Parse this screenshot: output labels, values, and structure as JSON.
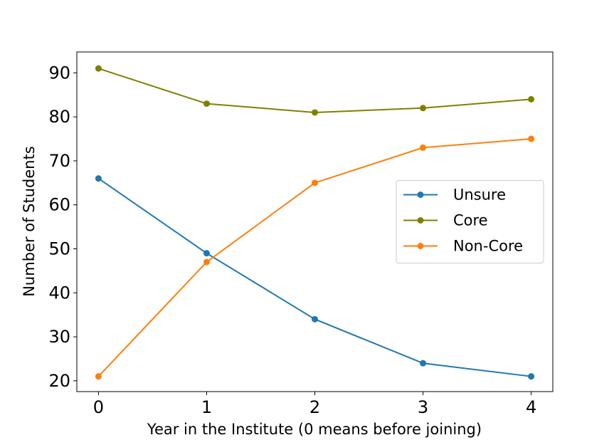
{
  "chart_data": {
    "type": "line",
    "x_label": "Year in the Institute (0 means before joining)",
    "y_label": "Number of Students",
    "x": [
      0,
      1,
      2,
      3,
      4
    ],
    "series": [
      {
        "name": "Unsure",
        "color": "#1f77b4",
        "values": [
          66,
          49,
          34,
          24,
          21
        ]
      },
      {
        "name": "Core",
        "color": "#808000",
        "values": [
          91,
          83,
          81,
          82,
          84
        ]
      },
      {
        "name": "Non-Core",
        "color": "#ff7f0e",
        "values": [
          21,
          47,
          65,
          73,
          75
        ]
      }
    ],
    "xlim": [
      -0.2,
      4.2
    ],
    "xticks": [
      0,
      1,
      2,
      3,
      4
    ],
    "ylim": [
      17.55,
      94.75
    ],
    "yticks": [
      20,
      30,
      40,
      50,
      60,
      70,
      80,
      90
    ],
    "grid": false,
    "legend": "center right",
    "markers": true
  }
}
